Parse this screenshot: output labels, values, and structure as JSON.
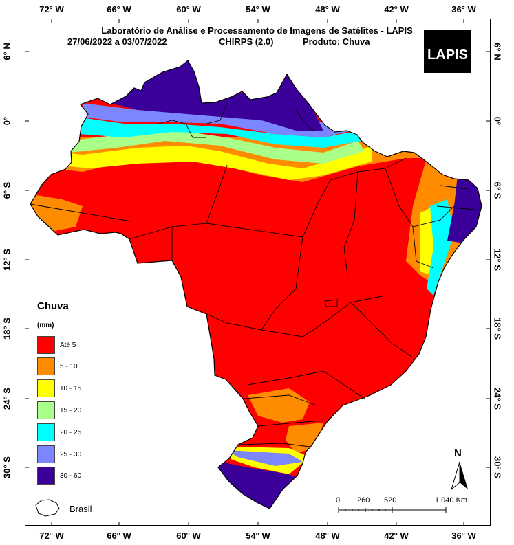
{
  "title": {
    "line1": "Laboratório de Análise e Processamento de Imagens de Satélites - LAPIS",
    "dates": "27/06/2022  a 03/07/2022",
    "source": "CHIRPS (2.0)",
    "product": "Produto: Chuva"
  },
  "logo_text": "LAPIS",
  "longitude_labels": [
    "72° W",
    "66° W",
    "60° W",
    "54° W",
    "48° W",
    "42° W",
    "36° W"
  ],
  "latitude_labels": [
    "6° N",
    "0°",
    "6° S",
    "12° S",
    "18° S",
    "24° S",
    "30° S"
  ],
  "legend": {
    "title": "Chuva",
    "unit": "(mm)",
    "items": [
      {
        "label": "Até 5",
        "color": "#ff0000"
      },
      {
        "label": "5 - 10",
        "color": "#ff8c00"
      },
      {
        "label": "10 - 15",
        "color": "#ffff00"
      },
      {
        "label": "15 - 20",
        "color": "#aaff88"
      },
      {
        "label": "20 - 25",
        "color": "#00ffff"
      },
      {
        "label": "25 - 30",
        "color": "#7b86ff"
      },
      {
        "label": "30 - 60",
        "color": "#3a0099"
      }
    ],
    "brasil_label": "Brasil"
  },
  "scale_bar": {
    "labels": [
      "0",
      "260",
      "520",
      "1.040 Km"
    ]
  },
  "north_arrow": "N"
}
